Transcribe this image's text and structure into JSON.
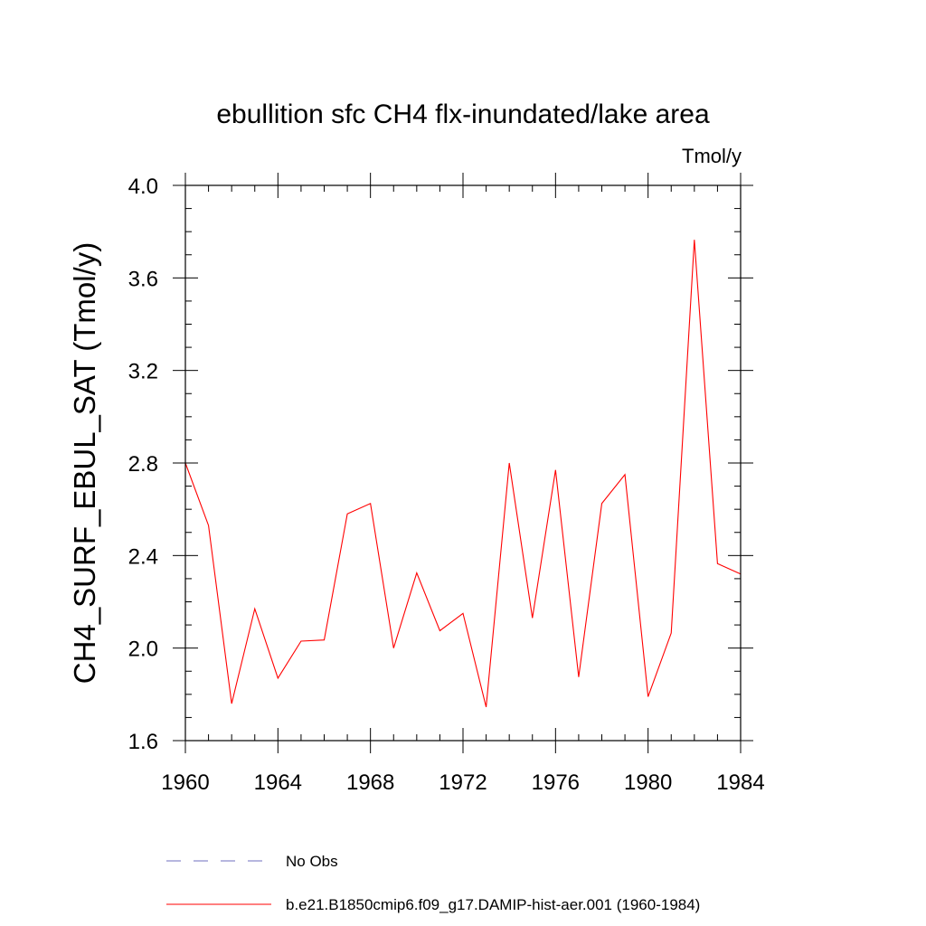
{
  "chart_data": {
    "type": "line",
    "title": "ebullition sfc CH4 flx-inundated/lake area",
    "units_label": "Tmol/y",
    "ylabel": "CH4_SURF_EBUL_SAT  (Tmol/y)",
    "xlabel": "",
    "xlim": [
      1960,
      1984
    ],
    "ylim": [
      1.6,
      4.0
    ],
    "x_ticks": [
      1960,
      1964,
      1968,
      1972,
      1976,
      1980,
      1984
    ],
    "x_tick_labels": [
      "1960",
      "1964",
      "1968",
      "1972",
      "1976",
      "1980",
      "1984"
    ],
    "y_ticks": [
      1.6,
      2.0,
      2.4,
      2.8,
      3.2,
      3.6,
      4.0
    ],
    "y_tick_labels": [
      "1.6",
      "2.0",
      "2.4",
      "2.8",
      "3.2",
      "3.6",
      "4.0"
    ],
    "grid": false,
    "legend_position": "bottom",
    "series": [
      {
        "name": "b.e21.B1850cmip6.f09_g17.DAMIP-hist-aer.001 (1960-1984)",
        "color": "#ff0000",
        "style": "solid",
        "x": [
          1960,
          1961,
          1962,
          1963,
          1964,
          1965,
          1966,
          1967,
          1968,
          1969,
          1970,
          1971,
          1972,
          1973,
          1974,
          1975,
          1976,
          1977,
          1978,
          1979,
          1980,
          1981,
          1982,
          1983,
          1984
        ],
        "y": [
          2.8,
          2.53,
          1.76,
          2.17,
          1.87,
          2.03,
          2.035,
          2.58,
          2.625,
          2.0,
          2.325,
          2.075,
          2.15,
          1.745,
          2.8,
          2.13,
          2.77,
          1.875,
          2.625,
          2.75,
          1.79,
          2.065,
          3.765,
          2.365,
          2.32
        ]
      }
    ],
    "legend": [
      {
        "label": "No Obs",
        "color": "#6f6fbf",
        "style": "dashed"
      },
      {
        "label": "b.e21.B1850cmip6.f09_g17.DAMIP-hist-aer.001 (1960-1984)",
        "color": "#ff0000",
        "style": "solid"
      }
    ]
  }
}
